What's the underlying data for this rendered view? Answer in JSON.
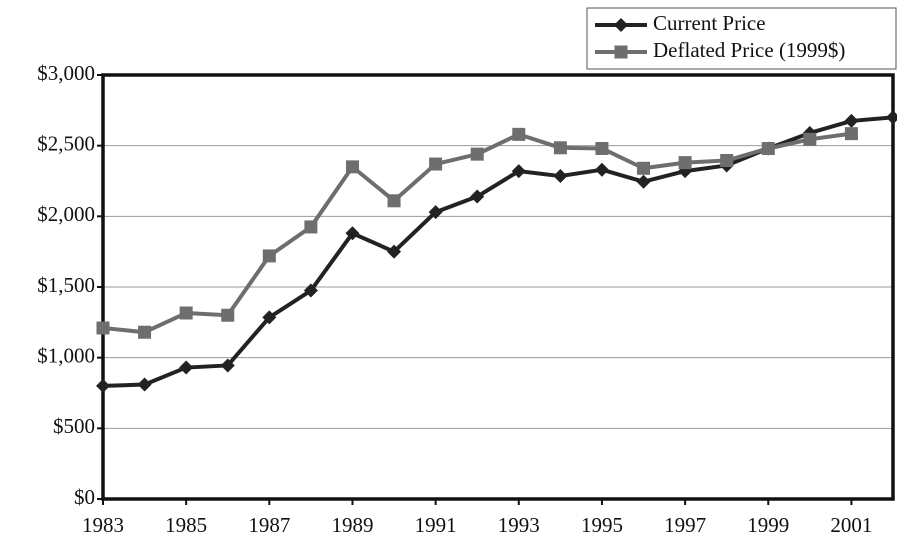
{
  "chart_data": {
    "type": "line",
    "x": [
      1983,
      1984,
      1985,
      1986,
      1987,
      1988,
      1989,
      1990,
      1991,
      1992,
      1993,
      1994,
      1995,
      1996,
      1997,
      1998,
      1999,
      2000,
      2001,
      2002
    ],
    "series": [
      {
        "name": "Current Price",
        "color": "#222222",
        "marker": "diamond",
        "values": [
          800,
          810,
          930,
          945,
          1285,
          1475,
          1880,
          1750,
          2030,
          2140,
          2320,
          2285,
          2330,
          2245,
          2320,
          2360,
          2480,
          2590,
          2675,
          2700
        ]
      },
      {
        "name": "Deflated Price (1999$)",
        "color": "#6e6e6e",
        "marker": "square",
        "values": [
          1210,
          1180,
          1316,
          1300,
          1720,
          1925,
          2350,
          2110,
          2370,
          2440,
          2580,
          2485,
          2480,
          2340,
          2380,
          2395,
          2480,
          2545,
          2585,
          null
        ]
      }
    ],
    "xlim": [
      1983,
      2002
    ],
    "xticks": [
      1983,
      1985,
      1987,
      1989,
      1991,
      1993,
      1995,
      1997,
      1999,
      2001
    ],
    "ylim": [
      0,
      3000
    ],
    "yticks": [
      {
        "value": 0,
        "label": "$0"
      },
      {
        "value": 500,
        "label": "$500"
      },
      {
        "value": 1000,
        "label": "$1,000"
      },
      {
        "value": 1500,
        "label": "$1,500"
      },
      {
        "value": 2000,
        "label": "$2,000"
      },
      {
        "value": 2500,
        "label": "$2,500"
      },
      {
        "value": 3000,
        "label": "$3,000"
      }
    ],
    "grid": true,
    "legend": "upper right"
  }
}
